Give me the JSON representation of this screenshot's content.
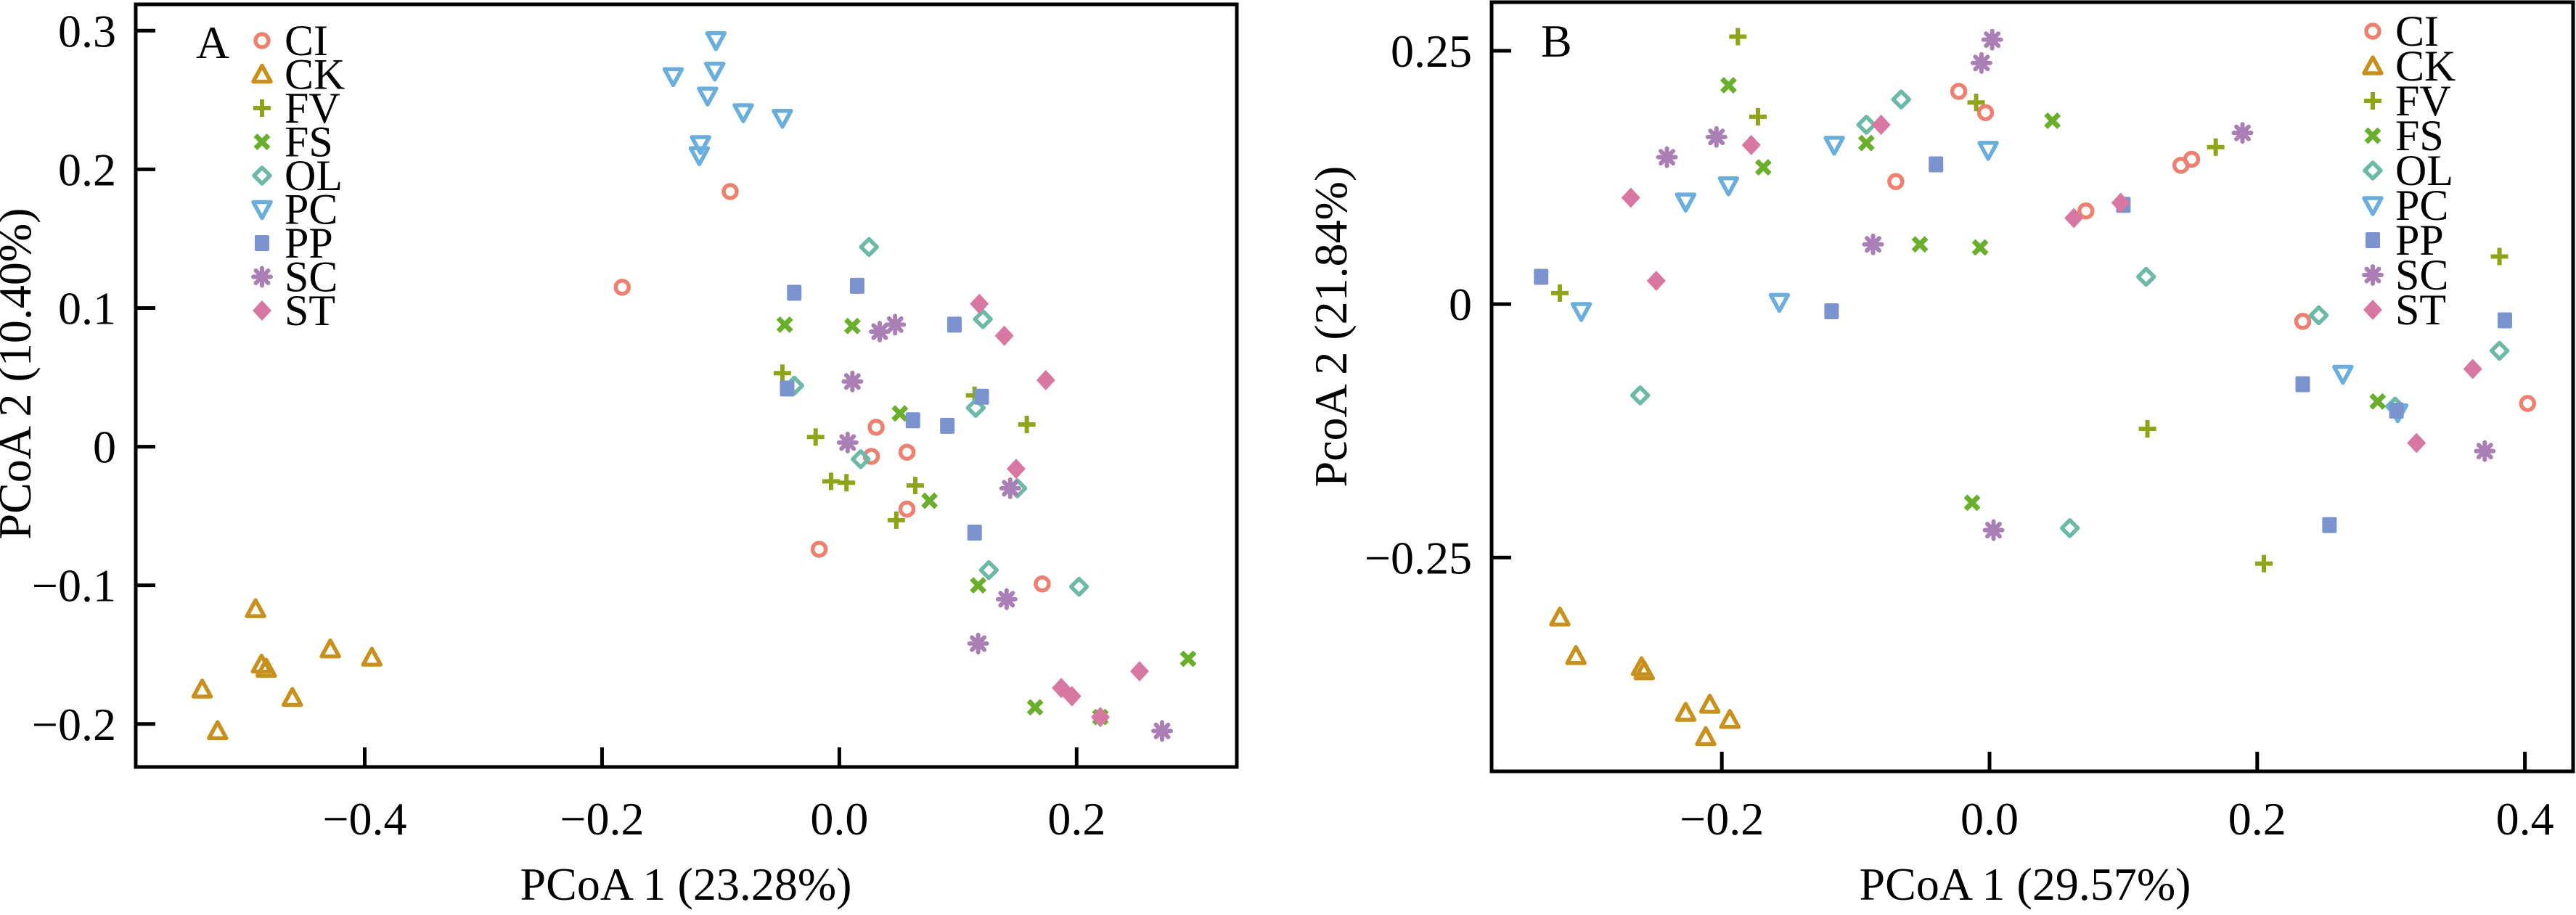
{
  "groups": [
    {
      "name": "CI",
      "marker": "circle-open",
      "color": "#EE8070"
    },
    {
      "name": "CK",
      "marker": "triangle-up-open",
      "color": "#C8901C"
    },
    {
      "name": "FV",
      "marker": "plus",
      "color": "#8FA419"
    },
    {
      "name": "FS",
      "marker": "x",
      "color": "#6AAF2B"
    },
    {
      "name": "OL",
      "marker": "diamond-open",
      "color": "#6DB9A8"
    },
    {
      "name": "PC",
      "marker": "triangle-down-open",
      "color": "#6AAEDE"
    },
    {
      "name": "PP",
      "marker": "square-filled",
      "color": "#7B93CF"
    },
    {
      "name": "SC",
      "marker": "asterisk",
      "color": "#A97FB6"
    },
    {
      "name": "ST",
      "marker": "diamond-filled",
      "color": "#D877A1"
    }
  ],
  "chart_data": [
    {
      "type": "scatter",
      "panel": "A",
      "title": "",
      "xlabel": "PCoA 1 (23.28%)",
      "ylabel": "PCoA 2 (10.40%)",
      "xlim": [
        -0.593,
        0.335
      ],
      "ylim": [
        -0.231,
        0.319
      ],
      "xticks": [
        -0.4,
        -0.2,
        0.0,
        0.2
      ],
      "xtick_labels": [
        "−0.4",
        "−0.2",
        "0.0",
        "0.2"
      ],
      "yticks": [
        0.3,
        0.2,
        0.1,
        0,
        -0.1,
        -0.2
      ],
      "ytick_labels": [
        "0.3",
        "0.2",
        "0.1",
        "0",
        "−0.1",
        "−0.2"
      ],
      "grid": false,
      "legend_position": "top-left",
      "series": [
        {
          "name": "CI",
          "points": [
            [
              -0.092,
              0.184
            ],
            [
              -0.183,
              0.115
            ],
            [
              0.031,
              0.014
            ],
            [
              0.027,
              -0.007
            ],
            [
              0.057,
              -0.004
            ],
            [
              0.057,
              -0.045
            ],
            [
              -0.017,
              -0.074
            ],
            [
              0.171,
              -0.099
            ]
          ]
        },
        {
          "name": "CK",
          "points": [
            [
              -0.492,
              -0.117
            ],
            [
              -0.429,
              -0.146
            ],
            [
              -0.394,
              -0.152
            ],
            [
              -0.487,
              -0.157
            ],
            [
              -0.483,
              -0.16
            ],
            [
              -0.537,
              -0.175
            ],
            [
              -0.461,
              -0.181
            ],
            [
              -0.524,
              -0.205
            ]
          ]
        },
        {
          "name": "FV",
          "points": [
            [
              -0.048,
              0.053
            ],
            [
              0.114,
              0.037
            ],
            [
              0.158,
              0.016
            ],
            [
              -0.02,
              0.007
            ],
            [
              -0.007,
              -0.025
            ],
            [
              0.006,
              -0.026
            ],
            [
              0.064,
              -0.028
            ],
            [
              0.048,
              -0.053
            ]
          ]
        },
        {
          "name": "FS",
          "points": [
            [
              -0.046,
              0.088
            ],
            [
              0.011,
              0.087
            ],
            [
              0.051,
              0.024
            ],
            [
              0.076,
              -0.039
            ],
            [
              0.117,
              -0.1
            ],
            [
              0.294,
              -0.153
            ],
            [
              0.165,
              -0.188
            ],
            [
              0.22,
              -0.195
            ]
          ]
        },
        {
          "name": "OL",
          "points": [
            [
              0.025,
              0.144
            ],
            [
              0.121,
              0.092
            ],
            [
              -0.038,
              0.044
            ],
            [
              0.115,
              0.028
            ],
            [
              0.018,
              -0.009
            ],
            [
              0.15,
              -0.03
            ],
            [
              0.126,
              -0.089
            ],
            [
              0.202,
              -0.101
            ]
          ]
        },
        {
          "name": "PC",
          "points": [
            [
              -0.104,
              0.293
            ],
            [
              -0.105,
              0.271
            ],
            [
              -0.14,
              0.267
            ],
            [
              -0.111,
              0.253
            ],
            [
              -0.081,
              0.241
            ],
            [
              -0.048,
              0.237
            ],
            [
              -0.117,
              0.218
            ],
            [
              -0.118,
              0.21
            ]
          ]
        },
        {
          "name": "PP",
          "points": [
            [
              -0.038,
              0.111
            ],
            [
              0.015,
              0.116
            ],
            [
              0.097,
              0.088
            ],
            [
              -0.044,
              0.042
            ],
            [
              0.12,
              0.036
            ],
            [
              0.062,
              0.019
            ],
            [
              0.091,
              0.015
            ],
            [
              0.114,
              -0.062
            ]
          ]
        },
        {
          "name": "SC",
          "points": [
            [
              0.034,
              0.083
            ],
            [
              0.047,
              0.088
            ],
            [
              0.011,
              0.047
            ],
            [
              0.007,
              0.003
            ],
            [
              0.144,
              -0.03
            ],
            [
              0.141,
              -0.11
            ],
            [
              0.117,
              -0.142
            ],
            [
              0.272,
              -0.205
            ]
          ]
        },
        {
          "name": "ST",
          "points": [
            [
              0.118,
              0.103
            ],
            [
              0.139,
              0.08
            ],
            [
              0.174,
              0.048
            ],
            [
              0.149,
              -0.016
            ],
            [
              0.253,
              -0.162
            ],
            [
              0.187,
              -0.174
            ],
            [
              0.196,
              -0.18
            ],
            [
              0.22,
              -0.195
            ]
          ]
        }
      ]
    },
    {
      "type": "scatter",
      "panel": "B",
      "title": "",
      "xlabel": "PCoA 1 (29.57%)",
      "ylabel": "PcoA 2 (21.84%)",
      "xlim": [
        -0.372,
        0.436
      ],
      "ylim": [
        -0.461,
        0.298
      ],
      "xticks": [
        -0.2,
        0.0,
        0.2,
        0.4
      ],
      "xtick_labels": [
        "−0.2",
        "0.0",
        "0.2",
        "0.4"
      ],
      "yticks": [
        0.25,
        0,
        -0.25
      ],
      "ytick_labels": [
        "0.25",
        "0",
        "−0.25"
      ],
      "grid": false,
      "legend_position": "top-right",
      "series": [
        {
          "name": "CI",
          "points": [
            [
              -0.023,
              0.21
            ],
            [
              -0.003,
              0.189
            ],
            [
              -0.07,
              0.121
            ],
            [
              0.151,
              0.143
            ],
            [
              0.143,
              0.137
            ],
            [
              0.072,
              0.092
            ],
            [
              0.234,
              -0.017
            ],
            [
              0.402,
              -0.098
            ]
          ]
        },
        {
          "name": "CK",
          "points": [
            [
              -0.321,
              -0.309
            ],
            [
              -0.309,
              -0.347
            ],
            [
              -0.26,
              -0.358
            ],
            [
              -0.258,
              -0.362
            ],
            [
              -0.209,
              -0.395
            ],
            [
              -0.227,
              -0.403
            ],
            [
              -0.194,
              -0.41
            ],
            [
              -0.212,
              -0.427
            ]
          ]
        },
        {
          "name": "FV",
          "points": [
            [
              -0.188,
              0.264
            ],
            [
              -0.01,
              0.199
            ],
            [
              -0.173,
              0.185
            ],
            [
              0.169,
              0.155
            ],
            [
              -0.321,
              0.011
            ],
            [
              0.381,
              0.047
            ],
            [
              0.118,
              -0.123
            ],
            [
              0.205,
              -0.256
            ]
          ]
        },
        {
          "name": "FS",
          "points": [
            [
              -0.195,
              0.216
            ],
            [
              -0.092,
              0.159
            ],
            [
              0.047,
              0.181
            ],
            [
              -0.169,
              0.135
            ],
            [
              -0.052,
              0.059
            ],
            [
              -0.007,
              0.056
            ],
            [
              0.29,
              -0.096
            ],
            [
              -0.013,
              -0.196
            ]
          ]
        },
        {
          "name": "OL",
          "points": [
            [
              -0.066,
              0.202
            ],
            [
              -0.092,
              0.177
            ],
            [
              0.117,
              0.027
            ],
            [
              0.246,
              -0.011
            ],
            [
              0.381,
              -0.046
            ],
            [
              0.303,
              -0.101
            ],
            [
              -0.261,
              -0.09
            ],
            [
              0.06,
              -0.221
            ]
          ]
        },
        {
          "name": "PC",
          "points": [
            [
              -0.116,
              0.157
            ],
            [
              -0.001,
              0.152
            ],
            [
              -0.195,
              0.117
            ],
            [
              -0.227,
              0.101
            ],
            [
              -0.305,
              -0.007
            ],
            [
              -0.157,
              0.002
            ],
            [
              0.264,
              -0.069
            ],
            [
              0.305,
              -0.107
            ]
          ]
        },
        {
          "name": "PP",
          "points": [
            [
              -0.04,
              0.138
            ],
            [
              0.1,
              0.098
            ],
            [
              -0.335,
              0.027
            ],
            [
              -0.118,
              -0.007
            ],
            [
              0.385,
              -0.016
            ],
            [
              0.234,
              -0.079
            ],
            [
              0.304,
              -0.105
            ],
            [
              0.254,
              -0.218
            ]
          ]
        },
        {
          "name": "SC",
          "points": [
            [
              0.002,
              0.261
            ],
            [
              -0.006,
              0.238
            ],
            [
              -0.204,
              0.165
            ],
            [
              -0.241,
              0.145
            ],
            [
              0.189,
              0.169
            ],
            [
              -0.087,
              0.059
            ],
            [
              0.37,
              -0.145
            ],
            [
              0.003,
              -0.223
            ]
          ]
        },
        {
          "name": "ST",
          "points": [
            [
              -0.081,
              0.177
            ],
            [
              -0.178,
              0.157
            ],
            [
              -0.268,
              0.105
            ],
            [
              0.098,
              0.1
            ],
            [
              0.063,
              0.085
            ],
            [
              -0.249,
              0.023
            ],
            [
              0.361,
              -0.064
            ],
            [
              0.319,
              -0.137
            ]
          ]
        }
      ]
    }
  ]
}
